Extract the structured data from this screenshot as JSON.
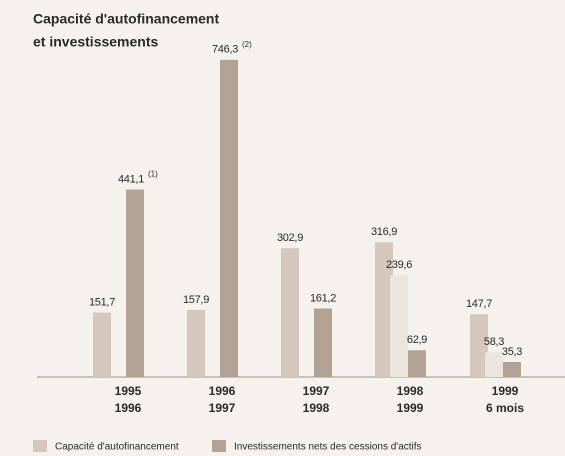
{
  "chart_data": {
    "type": "bar",
    "title": [
      "Capacité d'autofinancement",
      "et investissements"
    ],
    "categories": [
      [
        "1995",
        "1996"
      ],
      [
        "1996",
        "1997"
      ],
      [
        "1997",
        "1998"
      ],
      [
        "1998",
        "1999"
      ],
      [
        "1999",
        "6 mois"
      ]
    ],
    "series": [
      {
        "name": "Capacité d'autofinancement",
        "color": "#d5c7bb",
        "values": [
          151.7,
          157.9,
          302.9,
          316.9,
          147.7
        ],
        "value_labels": [
          "151,7",
          "157,9",
          "302,9",
          "316,9",
          "147,7"
        ]
      },
      {
        "color": "#ece5dd",
        "values": [
          null,
          null,
          null,
          239.6,
          58.3
        ],
        "value_labels": [
          null,
          null,
          null,
          "239,6",
          "58,3"
        ]
      },
      {
        "name": "Investissements nets des cessions d'actifs",
        "color": "#b2a293",
        "values": [
          441.1,
          746.3,
          161.2,
          62.9,
          35.3
        ],
        "value_labels": [
          "441,1",
          "746,3",
          "161,2",
          "62,9",
          "35,3"
        ],
        "value_notes": [
          "(1)",
          "(2)",
          null,
          null,
          null
        ]
      }
    ],
    "ylim": [
      0,
      800
    ]
  }
}
